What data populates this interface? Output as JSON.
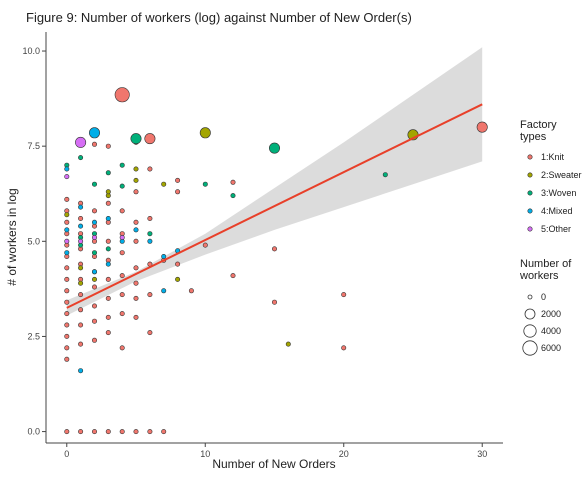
{
  "chart_data": {
    "type": "scatter",
    "title": "Figure 9: Number of workers (log) against Number of New Order(s)",
    "xlabel": "Number of New Orders",
    "ylabel": "# of workers in log",
    "xlim": [
      -1.5,
      31.5
    ],
    "ylim": [
      -0.3,
      10.5
    ],
    "x_ticks": [
      0,
      10,
      20,
      30
    ],
    "x_tick_labels": [
      "0",
      "10",
      "20",
      "30"
    ],
    "y_ticks": [
      0,
      2.5,
      5,
      7.5,
      10
    ],
    "y_tick_labels": [
      "0.0",
      "2.5",
      "5.0",
      "7.5",
      "10.0"
    ],
    "grid": false,
    "trend_line": {
      "color": "#e8402a",
      "x": [
        0,
        30
      ],
      "y": [
        3.25,
        8.6
      ]
    },
    "confidence_band": {
      "color": "#d6d6d6",
      "x": [
        0,
        5,
        10,
        15,
        20,
        25,
        30
      ],
      "lower": [
        3.05,
        3.95,
        4.65,
        5.3,
        5.9,
        6.5,
        7.1
      ],
      "upper": [
        3.45,
        4.2,
        5.2,
        6.4,
        7.6,
        8.85,
        10.1
      ]
    },
    "legend_color": {
      "title": [
        "Factory",
        "types"
      ],
      "position": "right",
      "entries": [
        {
          "label": "1:Knit",
          "color": "#f0766d"
        },
        {
          "label": "2:Sweater",
          "color": "#a3a500"
        },
        {
          "label": "3:Woven",
          "color": "#00b07a"
        },
        {
          "label": "4:Mixed",
          "color": "#00aee8"
        },
        {
          "label": "5:Other",
          "color": "#d66ef5"
        }
      ]
    },
    "legend_size": {
      "title": [
        "Number of",
        "workers"
      ],
      "position": "right",
      "entries": [
        {
          "label": "0",
          "workers": 0
        },
        {
          "label": "2000",
          "workers": 2000
        },
        {
          "label": "4000",
          "workers": 4000
        },
        {
          "label": "6000",
          "workers": 6000
        }
      ]
    },
    "series": [
      {
        "name": "1:Knit",
        "color": "#f0766d",
        "points": [
          [
            0,
            0
          ],
          [
            1,
            0
          ],
          [
            2,
            0
          ],
          [
            3,
            0
          ],
          [
            4,
            0
          ],
          [
            5,
            0
          ],
          [
            6,
            0
          ],
          [
            7,
            0
          ],
          [
            0,
            1.9
          ],
          [
            0,
            2.2
          ],
          [
            0,
            2.5
          ],
          [
            0,
            2.8
          ],
          [
            0,
            3.1
          ],
          [
            0,
            3.4
          ],
          [
            0,
            3.7
          ],
          [
            0,
            4.0
          ],
          [
            0,
            4.3
          ],
          [
            0,
            4.6
          ],
          [
            0,
            4.9
          ],
          [
            0,
            5.2
          ],
          [
            0,
            5.5
          ],
          [
            0,
            5.8
          ],
          [
            0,
            6.1
          ],
          [
            1,
            2.3
          ],
          [
            1,
            2.8
          ],
          [
            1,
            3.2
          ],
          [
            1,
            3.6
          ],
          [
            1,
            4.0
          ],
          [
            1,
            4.4
          ],
          [
            1,
            4.8
          ],
          [
            1,
            5.2
          ],
          [
            1,
            5.6
          ],
          [
            1,
            6.0
          ],
          [
            2,
            2.4
          ],
          [
            2,
            2.9
          ],
          [
            2,
            3.3
          ],
          [
            2,
            3.8
          ],
          [
            2,
            4.2
          ],
          [
            2,
            4.6
          ],
          [
            2,
            5.0
          ],
          [
            2,
            5.4
          ],
          [
            2,
            5.8
          ],
          [
            2,
            7.55
          ],
          [
            3,
            2.6
          ],
          [
            3,
            3.0
          ],
          [
            3,
            3.5
          ],
          [
            3,
            4.0
          ],
          [
            3,
            4.5
          ],
          [
            3,
            5.0
          ],
          [
            3,
            5.5
          ],
          [
            3,
            6.0
          ],
          [
            3,
            7.5
          ],
          [
            4,
            2.2
          ],
          [
            4,
            3.1
          ],
          [
            4,
            3.6
          ],
          [
            4,
            4.1
          ],
          [
            4,
            4.7
          ],
          [
            4,
            5.2
          ],
          [
            4,
            5.8
          ],
          [
            4,
            8.85
          ],
          [
            5,
            3.0
          ],
          [
            5,
            3.5
          ],
          [
            5,
            3.9
          ],
          [
            5,
            4.3
          ],
          [
            5,
            5.0
          ],
          [
            5,
            5.5
          ],
          [
            5,
            6.3
          ],
          [
            5,
            7.6
          ],
          [
            6,
            2.6
          ],
          [
            6,
            3.6
          ],
          [
            6,
            4.4
          ],
          [
            6,
            5.6
          ],
          [
            6,
            6.9
          ],
          [
            6,
            7.7
          ],
          [
            7,
            4.5
          ],
          [
            8,
            4.4
          ],
          [
            8,
            6.3
          ],
          [
            8,
            6.6
          ],
          [
            9,
            3.7
          ],
          [
            10,
            4.9
          ],
          [
            12,
            4.1
          ],
          [
            12,
            6.55
          ],
          [
            15,
            3.4
          ],
          [
            15,
            4.8
          ],
          [
            20,
            2.2
          ],
          [
            20,
            3.6
          ],
          [
            30,
            8.0
          ]
        ]
      },
      {
        "name": "2:Sweater",
        "color": "#a3a500",
        "points": [
          [
            0,
            5.7
          ],
          [
            1,
            3.9
          ],
          [
            1,
            4.3
          ],
          [
            2,
            4.0
          ],
          [
            3,
            6.2
          ],
          [
            3,
            6.3
          ],
          [
            5,
            6.6
          ],
          [
            5,
            6.9
          ],
          [
            7,
            6.5
          ],
          [
            8,
            4.0
          ],
          [
            10,
            7.85
          ],
          [
            16,
            2.3
          ],
          [
            25,
            7.8
          ]
        ]
      },
      {
        "name": "3:Woven",
        "color": "#00b07a",
        "points": [
          [
            0,
            7.0
          ],
          [
            1,
            7.2
          ],
          [
            1,
            4.9
          ],
          [
            1,
            5.1
          ],
          [
            2,
            4.7
          ],
          [
            2,
            5.2
          ],
          [
            2,
            6.5
          ],
          [
            3,
            6.8
          ],
          [
            3,
            4.8
          ],
          [
            4,
            6.45
          ],
          [
            4,
            7.0
          ],
          [
            5,
            7.7
          ],
          [
            6,
            5.2
          ],
          [
            10,
            6.5
          ],
          [
            12,
            6.2
          ],
          [
            15,
            7.45
          ],
          [
            23,
            6.75
          ]
        ]
      },
      {
        "name": "4:Mixed",
        "color": "#00aee8",
        "points": [
          [
            0,
            6.9
          ],
          [
            0,
            4.7
          ],
          [
            0,
            5.3
          ],
          [
            1,
            1.6
          ],
          [
            1,
            5.4
          ],
          [
            1,
            5.9
          ],
          [
            2,
            7.85
          ],
          [
            2,
            4.2
          ],
          [
            2,
            5.5
          ],
          [
            3,
            4.4
          ],
          [
            3,
            5.6
          ],
          [
            4,
            5.0
          ],
          [
            5,
            5.3
          ],
          [
            6,
            5.0
          ],
          [
            7,
            3.7
          ],
          [
            7,
            4.6
          ],
          [
            8,
            4.75
          ]
        ]
      },
      {
        "name": "5:Other",
        "color": "#d66ef5",
        "points": [
          [
            0,
            6.7
          ],
          [
            0,
            5.0
          ],
          [
            1,
            7.6
          ],
          [
            1,
            5.0
          ],
          [
            2,
            5.1
          ],
          [
            4,
            5.1
          ]
        ]
      }
    ],
    "size_levels": [
      {
        "series": "1:Knit",
        "x": 4,
        "y": 8.85,
        "size": "large"
      },
      {
        "series": "1:Knit",
        "x": 30,
        "y": 8.0,
        "size": "medium"
      },
      {
        "series": "2:Sweater",
        "x": 10,
        "y": 7.85,
        "size": "medium"
      },
      {
        "series": "2:Sweater",
        "x": 25,
        "y": 7.8,
        "size": "medium"
      },
      {
        "series": "4:Mixed",
        "x": 2,
        "y": 7.85,
        "size": "medium"
      },
      {
        "series": "5:Other",
        "x": 1,
        "y": 7.6,
        "size": "medium"
      },
      {
        "series": "3:Woven",
        "x": 5,
        "y": 7.7,
        "size": "medium"
      },
      {
        "series": "1:Knit",
        "x": 6,
        "y": 7.7,
        "size": "medium"
      },
      {
        "series": "3:Woven",
        "x": 15,
        "y": 7.45,
        "size": "medium"
      }
    ]
  }
}
